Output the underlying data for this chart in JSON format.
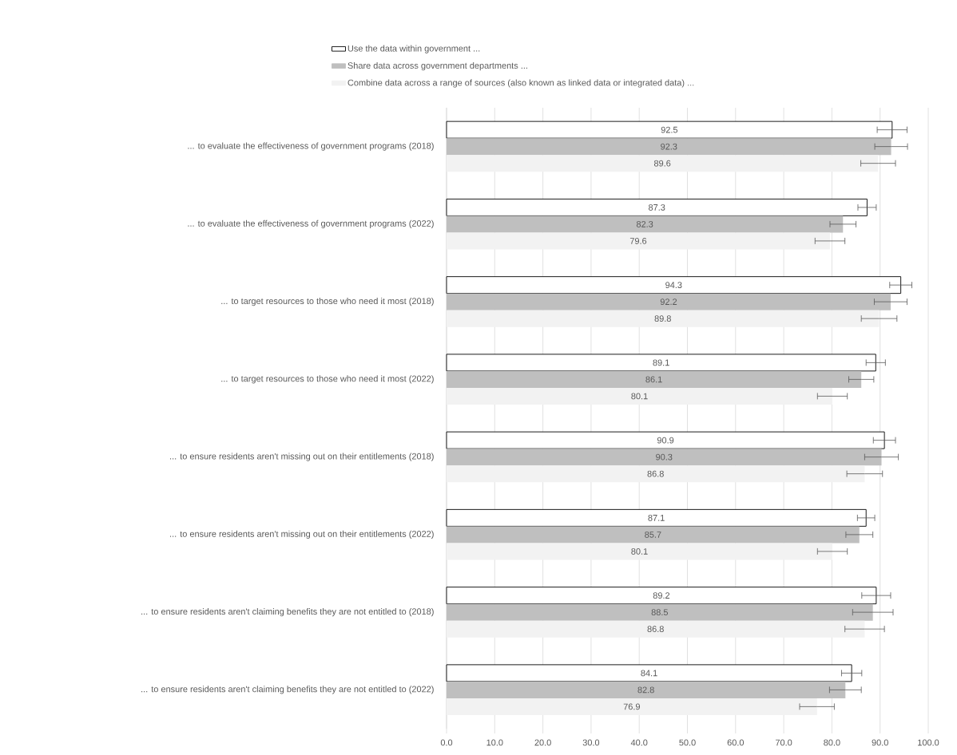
{
  "chart_data": {
    "type": "bar",
    "orientation": "horizontal",
    "categories": [
      "... to evaluate the effectiveness of government programs (2018)",
      "... to evaluate the effectiveness of government programs (2022)",
      "... to target resources to those who need it most (2018)",
      "... to target resources to those who need it most (2022)",
      "... to ensure residents aren't missing out on their entitlements (2018)",
      "... to ensure residents aren't missing out on their entitlements (2022)",
      "... to ensure residents aren't claiming benefits they are not entitled to (2018)",
      "... to ensure residents aren't claiming benefits they are not entitled to (2022)"
    ],
    "series": [
      {
        "name": "Use the data within government ...",
        "color": "#ffffff",
        "values": [
          92.5,
          87.3,
          94.3,
          89.1,
          90.9,
          87.1,
          89.2,
          84.1
        ],
        "errors": [
          3.1,
          1.9,
          2.3,
          2.0,
          2.3,
          1.8,
          3.0,
          2.1
        ],
        "value_labels": [
          "92.5",
          "87.3",
          "94.3",
          "89.1",
          "90.9",
          "87.1",
          "89.2",
          "84.1"
        ]
      },
      {
        "name": "Share data across government departments ...",
        "color": "#bfbfbf",
        "values": [
          92.3,
          82.3,
          92.2,
          86.1,
          90.3,
          85.7,
          88.5,
          82.8
        ],
        "errors": [
          3.4,
          2.7,
          3.4,
          2.6,
          3.5,
          2.8,
          4.2,
          3.3
        ],
        "value_labels": [
          "92.3",
          "82.3",
          "92.2",
          "86.1",
          "90.3",
          "85.7",
          "88.5",
          "82.8"
        ]
      },
      {
        "name": "Combine data across a range of sources (also known as linked data or integrated data) ...",
        "color": "#f2f2f2",
        "values": [
          89.6,
          79.6,
          89.8,
          80.1,
          86.8,
          80.1,
          86.8,
          76.9
        ],
        "errors": [
          3.6,
          3.1,
          3.7,
          3.1,
          3.7,
          3.1,
          4.1,
          3.6
        ],
        "value_labels": [
          "89.6",
          "79.6",
          "89.8",
          "80.1",
          "86.8",
          "80.1",
          "86.8",
          "76.9"
        ]
      }
    ],
    "xlim": [
      0,
      100
    ],
    "xticks": [
      {
        "value": 0,
        "label": "0.0"
      },
      {
        "value": 10,
        "label": "10.0"
      },
      {
        "value": 20,
        "label": "20.0"
      },
      {
        "value": 30,
        "label": "30.0"
      },
      {
        "value": 40,
        "label": "40.0"
      },
      {
        "value": 50,
        "label": "50.0"
      },
      {
        "value": 60,
        "label": "60.0"
      },
      {
        "value": 70,
        "label": "70.0"
      },
      {
        "value": 80,
        "label": "80.0"
      },
      {
        "value": 90,
        "label": "90.0"
      },
      {
        "value": 100,
        "label": "100.0"
      }
    ],
    "grid": "x",
    "legend": "top"
  }
}
